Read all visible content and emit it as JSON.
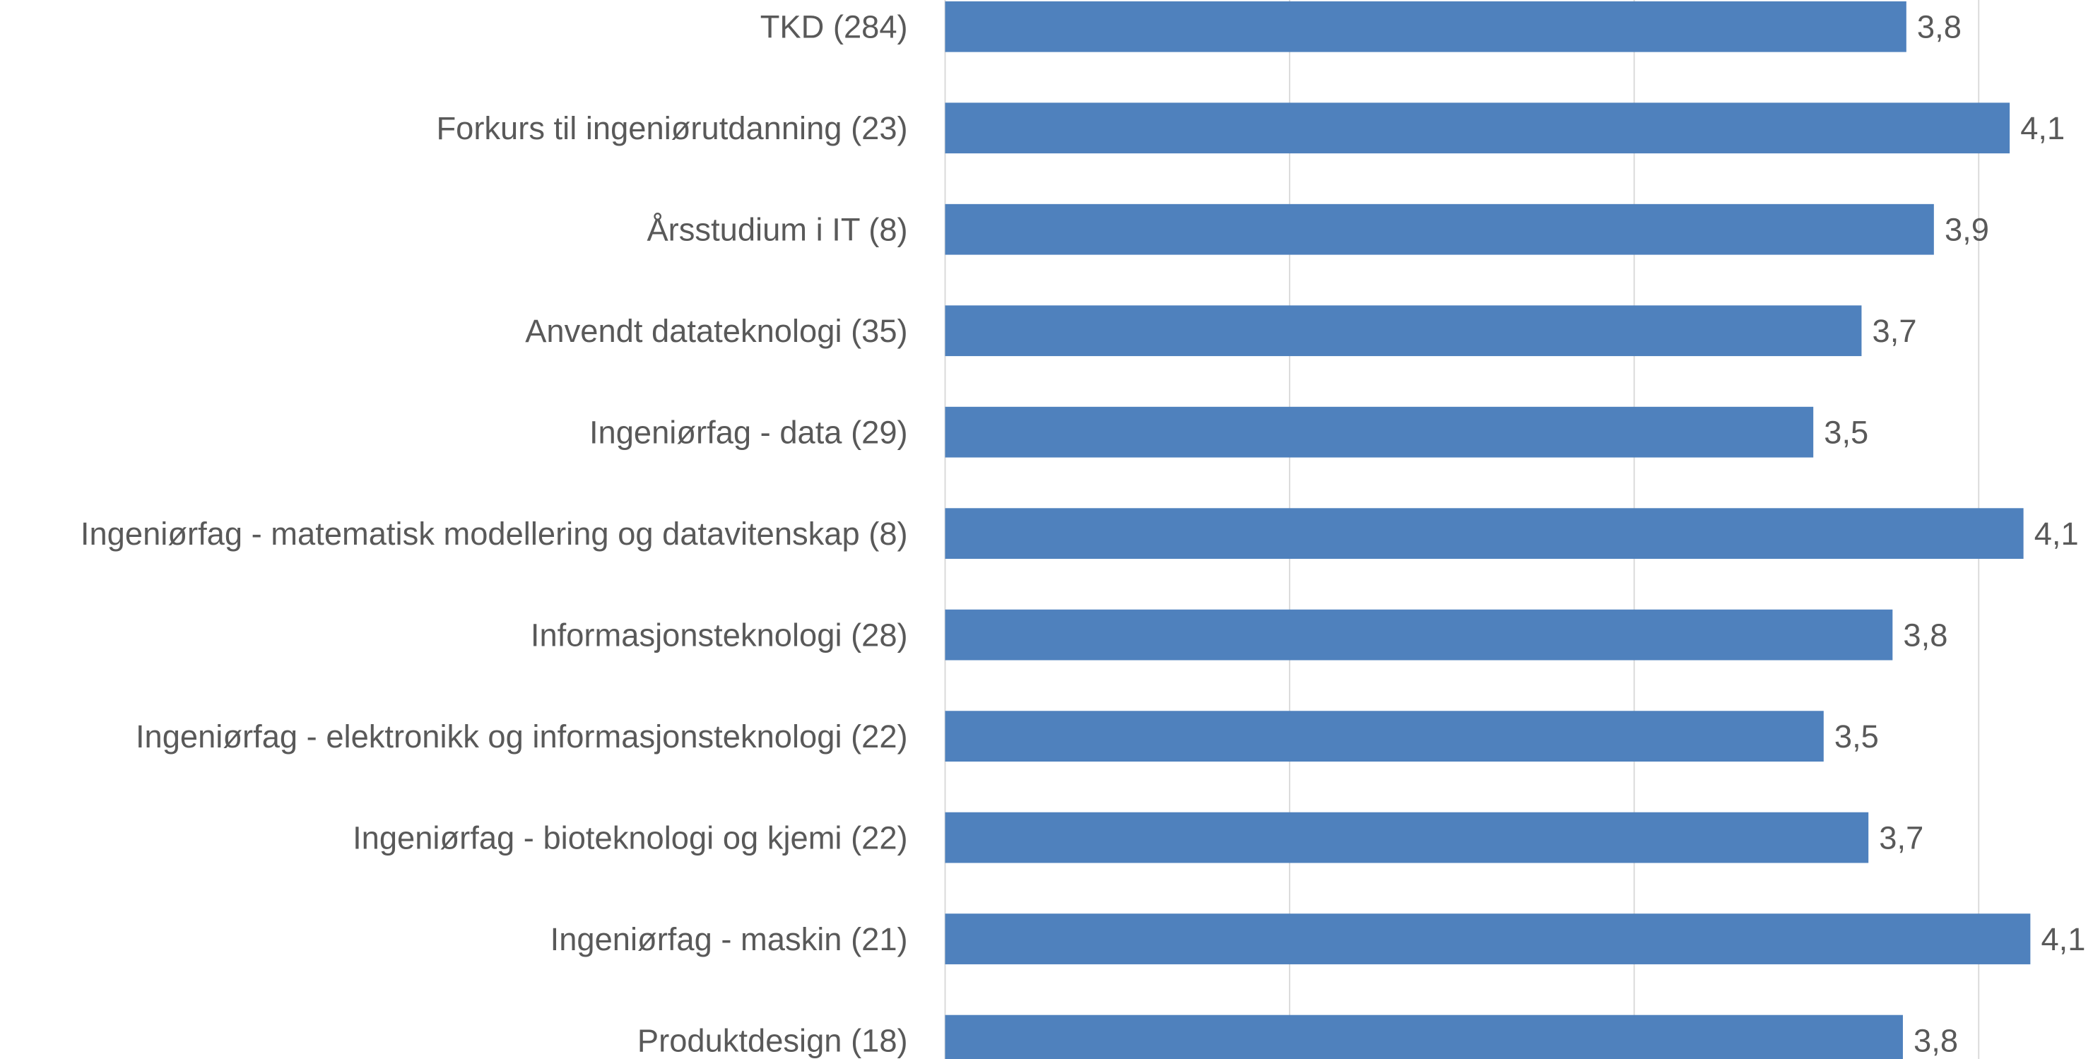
{
  "chart_data": {
    "type": "barh",
    "categories": [
      "TKD (284)",
      "Forkurs til ingeniørutdanning (23)",
      "Årsstudium i IT (8)",
      "Anvendt datateknologi (35)",
      "Ingeniørfag - data (29)",
      "Ingeniørfag - matematisk modellering og datavitenskap (8)",
      "Informasjonsteknologi (28)",
      "Ingeniørfag - elektronikk og informasjonsteknologi (22)",
      "Ingeniørfag - bioteknologi og kjemi (22)",
      "Ingeniørfag - maskin (21)",
      "Produktdesign (18)"
    ],
    "values": [
      3.79,
      4.09,
      3.87,
      3.66,
      3.52,
      4.13,
      3.75,
      3.55,
      3.68,
      4.15,
      3.78
    ],
    "value_labels": [
      "3,8",
      "4,1",
      "3,9",
      "3,7",
      "3,5",
      "4,1",
      "3,8",
      "3,5",
      "3,7",
      "4,1",
      "3,8"
    ],
    "color": "#4f81bd",
    "xlim": [
      1,
      4.33
    ],
    "xticks": [
      1,
      2,
      3,
      4
    ],
    "grid": true
  }
}
